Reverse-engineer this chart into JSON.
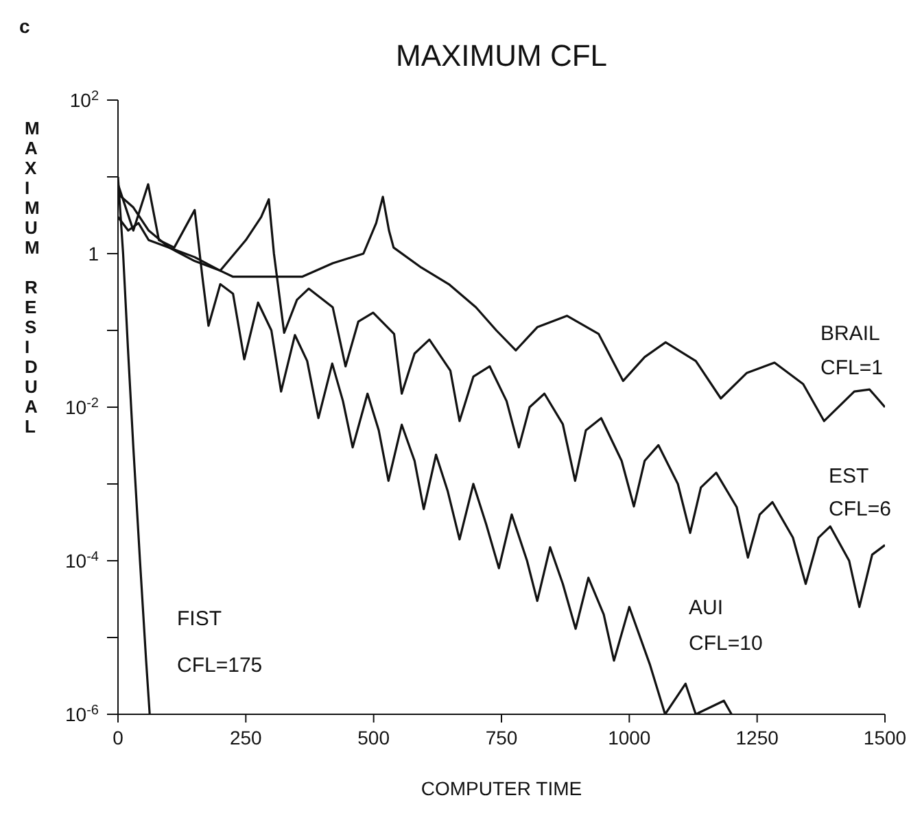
{
  "chart_data": {
    "type": "line",
    "title": "MAXIMUM CFL",
    "xlabel": "COMPUTER TIME",
    "ylabel": "MAXIMUM RESIDUAL",
    "log": "y",
    "xlim": [
      0,
      1500
    ],
    "xticks": [
      0,
      250,
      500,
      750,
      1000,
      1250,
      1500
    ],
    "ylim": [
      1e-06,
      100
    ],
    "yticks": [
      {
        "value": 100,
        "label": "10$^{2}$"
      },
      {
        "value": 10,
        "label": null
      },
      {
        "value": 1,
        "label": "1"
      },
      {
        "value": 0.1,
        "label": null
      },
      {
        "value": 0.01,
        "label": "10$^{-2}$"
      },
      {
        "value": 0.001,
        "label": null
      },
      {
        "value": 0.0001,
        "label": "10$^{-4}$"
      },
      {
        "value": 1e-05,
        "label": null
      },
      {
        "value": 1e-06,
        "label": "10$^{-6}$"
      }
    ],
    "annotations": [
      "c",
      "BRAIL",
      "CFL=1",
      "EST",
      "CFL=6",
      "AUI",
      "CFL=10",
      "FIST",
      "CFL=175"
    ],
    "series": [
      {
        "color": "#111111",
        "x": [
          0,
          20,
          40,
          60,
          100,
          150,
          200,
          225,
          360,
          420,
          480,
          505,
          518,
          530,
          539,
          593,
          647,
          700,
          740,
          778,
          820,
          878,
          940,
          988,
          1030,
          1071,
          1130,
          1179,
          1230,
          1284,
          1340,
          1381,
          1440,
          1470,
          1500
        ],
        "values": [
          3,
          2,
          2.5,
          1.5,
          1.2,
          0.9,
          0.6,
          0.5,
          0.5,
          0.75,
          1,
          2.5,
          5.5,
          2,
          1.2,
          0.66,
          0.4,
          0.2,
          0.1,
          0.055,
          0.11,
          0.155,
          0.09,
          0.022,
          0.045,
          0.07,
          0.04,
          0.013,
          0.028,
          0.038,
          0.02,
          0.0066,
          0.016,
          0.017,
          0.01
        ]
      },
      {
        "color": "#111111",
        "x": [
          0,
          30,
          60,
          100,
          150,
          200,
          250,
          280,
          295,
          305,
          325,
          350,
          373,
          420,
          445,
          470,
          499,
          540,
          555,
          580,
          609,
          650,
          668,
          695,
          727,
          760,
          784,
          805,
          834,
          870,
          894,
          915,
          945,
          985,
          1009,
          1030,
          1057,
          1095,
          1119,
          1140,
          1170,
          1210,
          1232,
          1255,
          1280,
          1320,
          1345,
          1370,
          1393,
          1430,
          1450,
          1475,
          1500
        ],
        "values": [
          6,
          4,
          2,
          1.2,
          0.8,
          0.6,
          1.5,
          3,
          5.1,
          1,
          0.093,
          0.25,
          0.35,
          0.2,
          0.034,
          0.13,
          0.17,
          0.09,
          0.015,
          0.05,
          0.076,
          0.03,
          0.0066,
          0.025,
          0.034,
          0.012,
          0.003,
          0.01,
          0.015,
          0.006,
          0.0011,
          0.005,
          0.0072,
          0.002,
          0.00051,
          0.002,
          0.0032,
          0.001,
          0.00023,
          0.0009,
          0.0014,
          0.0005,
          0.00011,
          0.0004,
          0.00058,
          0.0002,
          5e-05,
          0.0002,
          0.00028,
          0.0001,
          2.5e-05,
          0.00012,
          0.00016
        ]
      },
      {
        "color": "#111111",
        "x": [
          0,
          30,
          59,
          80,
          110,
          150,
          165,
          177,
          200,
          225,
          247,
          274,
          300,
          319,
          346,
          370,
          392,
          419,
          440,
          459,
          488,
          510,
          529,
          555,
          580,
          598,
          622,
          645,
          668,
          695,
          720,
          745,
          770,
          800,
          820,
          845,
          870,
          895,
          920,
          950,
          970,
          1000,
          1040,
          1070,
          1110,
          1130,
          1185,
          1200
        ],
        "values": [
          8,
          2,
          8,
          1.5,
          1.2,
          3.7,
          0.5,
          0.115,
          0.4,
          0.3,
          0.042,
          0.23,
          0.1,
          0.016,
          0.087,
          0.04,
          0.0072,
          0.037,
          0.012,
          0.003,
          0.015,
          0.005,
          0.0011,
          0.0059,
          0.002,
          0.00047,
          0.0024,
          0.0008,
          0.00019,
          0.001,
          0.0003,
          8e-05,
          0.0004,
          0.0001,
          3e-05,
          0.00015,
          5e-05,
          1.3e-05,
          6e-05,
          2e-05,
          5e-06,
          2.5e-05,
          4.5e-06,
          1e-06,
          2.5e-06,
          1e-06,
          1.5e-06,
          1e-06
        ]
      },
      {
        "color": "#111111",
        "x": [
          0,
          10,
          20,
          30,
          43,
          55,
          62
        ],
        "values": [
          10,
          1,
          0.05,
          0.003,
          0.0001,
          5e-06,
          1e-06
        ]
      }
    ]
  }
}
